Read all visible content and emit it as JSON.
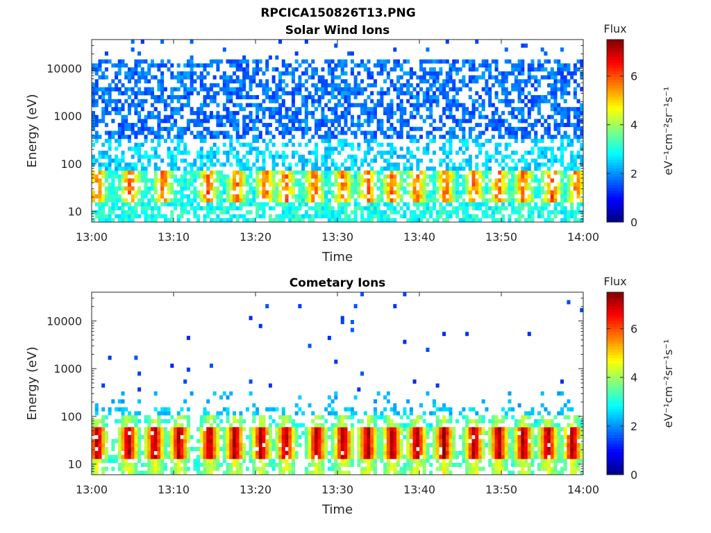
{
  "figure": {
    "title": "RPCICA150826T13.PNG"
  },
  "colors": {
    "colormap": [
      "#00008f",
      "#0000ff",
      "#0080ff",
      "#00ffff",
      "#80ff80",
      "#ffff00",
      "#ff8000",
      "#ff0000",
      "#800000"
    ],
    "axis": "#262626",
    "background": "#ffffff"
  },
  "chart_data": [
    {
      "type": "heatmap",
      "title": "Solar Wind Ions",
      "xlabel": "Time",
      "ylabel": "Energy (eV)",
      "x_ticks": [
        "13:00",
        "13:10",
        "13:20",
        "13:30",
        "13:40",
        "13:50",
        "14:00"
      ],
      "x_range": [
        "13:00",
        "14:00"
      ],
      "y_scale": "log",
      "y_ticks": [
        "10",
        "100",
        "1000",
        "10000"
      ],
      "y_tick_values": [
        10,
        100,
        1000,
        10000
      ],
      "y_range": [
        6,
        40000
      ],
      "colorbar": {
        "label_top": "Flux",
        "label": "eV⁻¹cm⁻²sr⁻¹s⁻¹",
        "ticks": [
          "0",
          "2",
          "4",
          "6"
        ],
        "tick_values": [
          0,
          2,
          4,
          6
        ],
        "range": [
          0,
          7.5
        ]
      },
      "hot_spot_minutes": [
        0.5,
        4.5,
        8.5,
        14,
        17.5,
        21,
        23.5,
        27,
        30.5,
        33.5,
        36.5,
        39.5,
        43,
        46.5,
        49.5,
        52.5,
        56,
        59
      ],
      "description_bands": {
        "high_energy_level": [
          1.5,
          2.2
        ],
        "mid_energy_level": [
          2.0,
          3.0
        ],
        "low_energy_level": [
          2.5,
          3.5
        ],
        "hot_spot_peak": 5.5
      }
    },
    {
      "type": "heatmap",
      "title": "Cometary Ions",
      "xlabel": "Time",
      "ylabel": "Energy (eV)",
      "x_ticks": [
        "13:00",
        "13:10",
        "13:20",
        "13:30",
        "13:40",
        "13:50",
        "14:00"
      ],
      "x_range": [
        "13:00",
        "14:00"
      ],
      "y_scale": "log",
      "y_ticks": [
        "10",
        "100",
        "1000",
        "10000"
      ],
      "y_tick_values": [
        10,
        100,
        1000,
        10000
      ],
      "y_range": [
        6,
        40000
      ],
      "colorbar": {
        "label_top": "Flux",
        "label": "eV⁻¹cm⁻²sr⁻¹s⁻¹",
        "ticks": [
          "0",
          "2",
          "4",
          "6"
        ],
        "tick_values": [
          0,
          2,
          4,
          6
        ],
        "range": [
          0,
          7.5
        ]
      },
      "hot_spot_minutes": [
        0.5,
        4.3,
        7.5,
        10.5,
        14.2,
        17.3,
        20.5,
        23.5,
        27.3,
        30.5,
        33.5,
        36.5,
        39.5,
        42.8,
        46.5,
        49.5,
        52.5,
        55.5,
        58.5
      ],
      "description_bands": {
        "sparse_high_level": [
          1.2,
          1.6
        ],
        "band_100_level": [
          2.2,
          2.8
        ],
        "hot_spot_peak": 7.0
      }
    }
  ]
}
